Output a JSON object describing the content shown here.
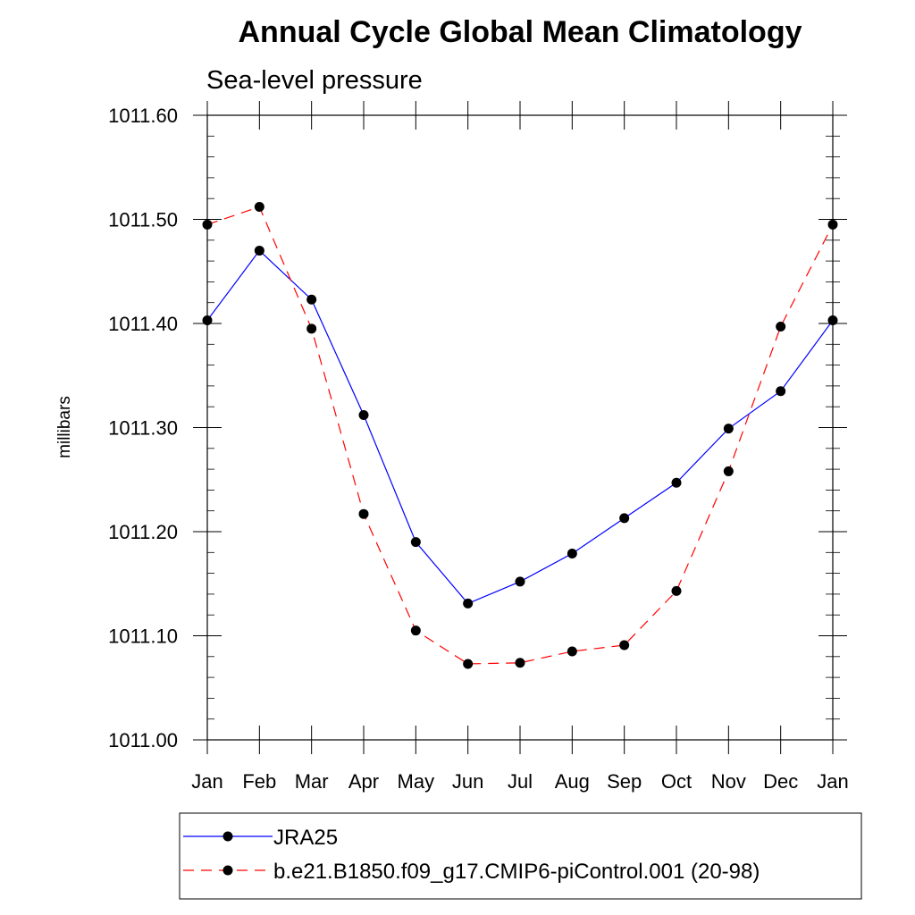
{
  "chart_data": {
    "type": "line",
    "title": "Annual Cycle Global Mean Climatology",
    "subtitle": "Sea-level pressure",
    "xlabel": "",
    "ylabel": "millibars",
    "categories": [
      "Jan",
      "Feb",
      "Mar",
      "Apr",
      "May",
      "Jun",
      "Jul",
      "Aug",
      "Sep",
      "Oct",
      "Nov",
      "Dec",
      "Jan"
    ],
    "yticks": [
      "1011.00",
      "1011.10",
      "1011.20",
      "1011.30",
      "1011.40",
      "1011.50",
      "1011.60"
    ],
    "ylim": [
      1011.0,
      1011.6
    ],
    "grid": false,
    "legend_position": "bottom",
    "series": [
      {
        "name": "JRA25",
        "color": "#0000ff",
        "line_style": "solid",
        "marker": "filled-circle",
        "values": [
          1011.403,
          1011.47,
          1011.423,
          1011.312,
          1011.19,
          1011.131,
          1011.152,
          1011.179,
          1011.213,
          1011.247,
          1011.299,
          1011.335,
          1011.403
        ]
      },
      {
        "name": "b.e21.B1850.f09_g17.CMIP6-piControl.001 (20-98)",
        "color": "#ff0000",
        "line_style": "dashed",
        "marker": "filled-circle",
        "values": [
          1011.495,
          1011.512,
          1011.395,
          1011.217,
          1011.105,
          1011.073,
          1011.074,
          1011.085,
          1011.091,
          1011.143,
          1011.258,
          1011.397,
          1011.495
        ]
      }
    ]
  }
}
